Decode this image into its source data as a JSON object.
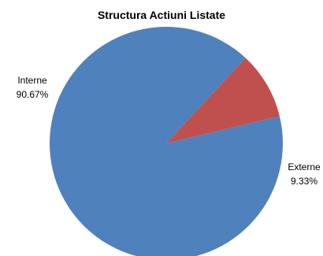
{
  "chart_data": {
    "type": "pie",
    "title": "Structura Actiuni Listate",
    "slices": [
      {
        "label": "Interne",
        "value": 90.67,
        "value_label": "90.67%",
        "color": "#4F81BD"
      },
      {
        "label": "Externe",
        "value": 9.33,
        "value_label": "9.33%",
        "color": "#C0504D"
      }
    ],
    "start_angle_deg": -13.5,
    "direction": "clockwise",
    "legend": "none",
    "label_placement": "outside"
  }
}
